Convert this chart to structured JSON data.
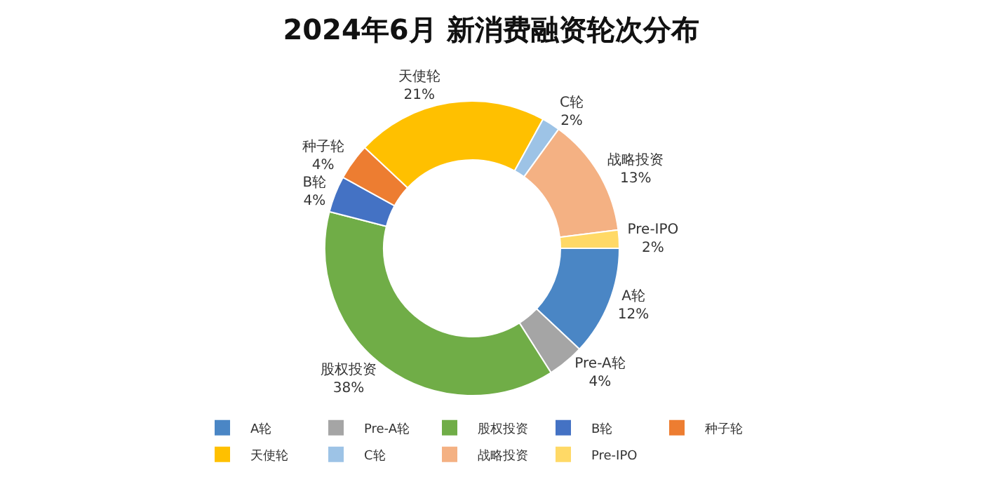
{
  "chart_data": {
    "type": "donut",
    "title": "2024年6月 新消费融资轮次分布",
    "categories": [
      "A轮",
      "Pre-A轮",
      "股权投资",
      "B轮",
      "种子轮",
      "天使轮",
      "C轮",
      "战略投资",
      "Pre-IPO"
    ],
    "values": [
      12,
      4,
      38,
      4,
      4,
      21,
      2,
      13,
      2
    ],
    "value_labels": [
      "12%",
      "4%",
      "38%",
      "4%",
      "4%",
      "21%",
      "2%",
      "13%",
      "2%"
    ],
    "colors": [
      "#4a86c5",
      "#a5a5a5",
      "#70ad47",
      "#4472c4",
      "#ed7d31",
      "#ffc000",
      "#9dc3e6",
      "#f4b183",
      "#ffd966"
    ],
    "legend": "bottom"
  }
}
